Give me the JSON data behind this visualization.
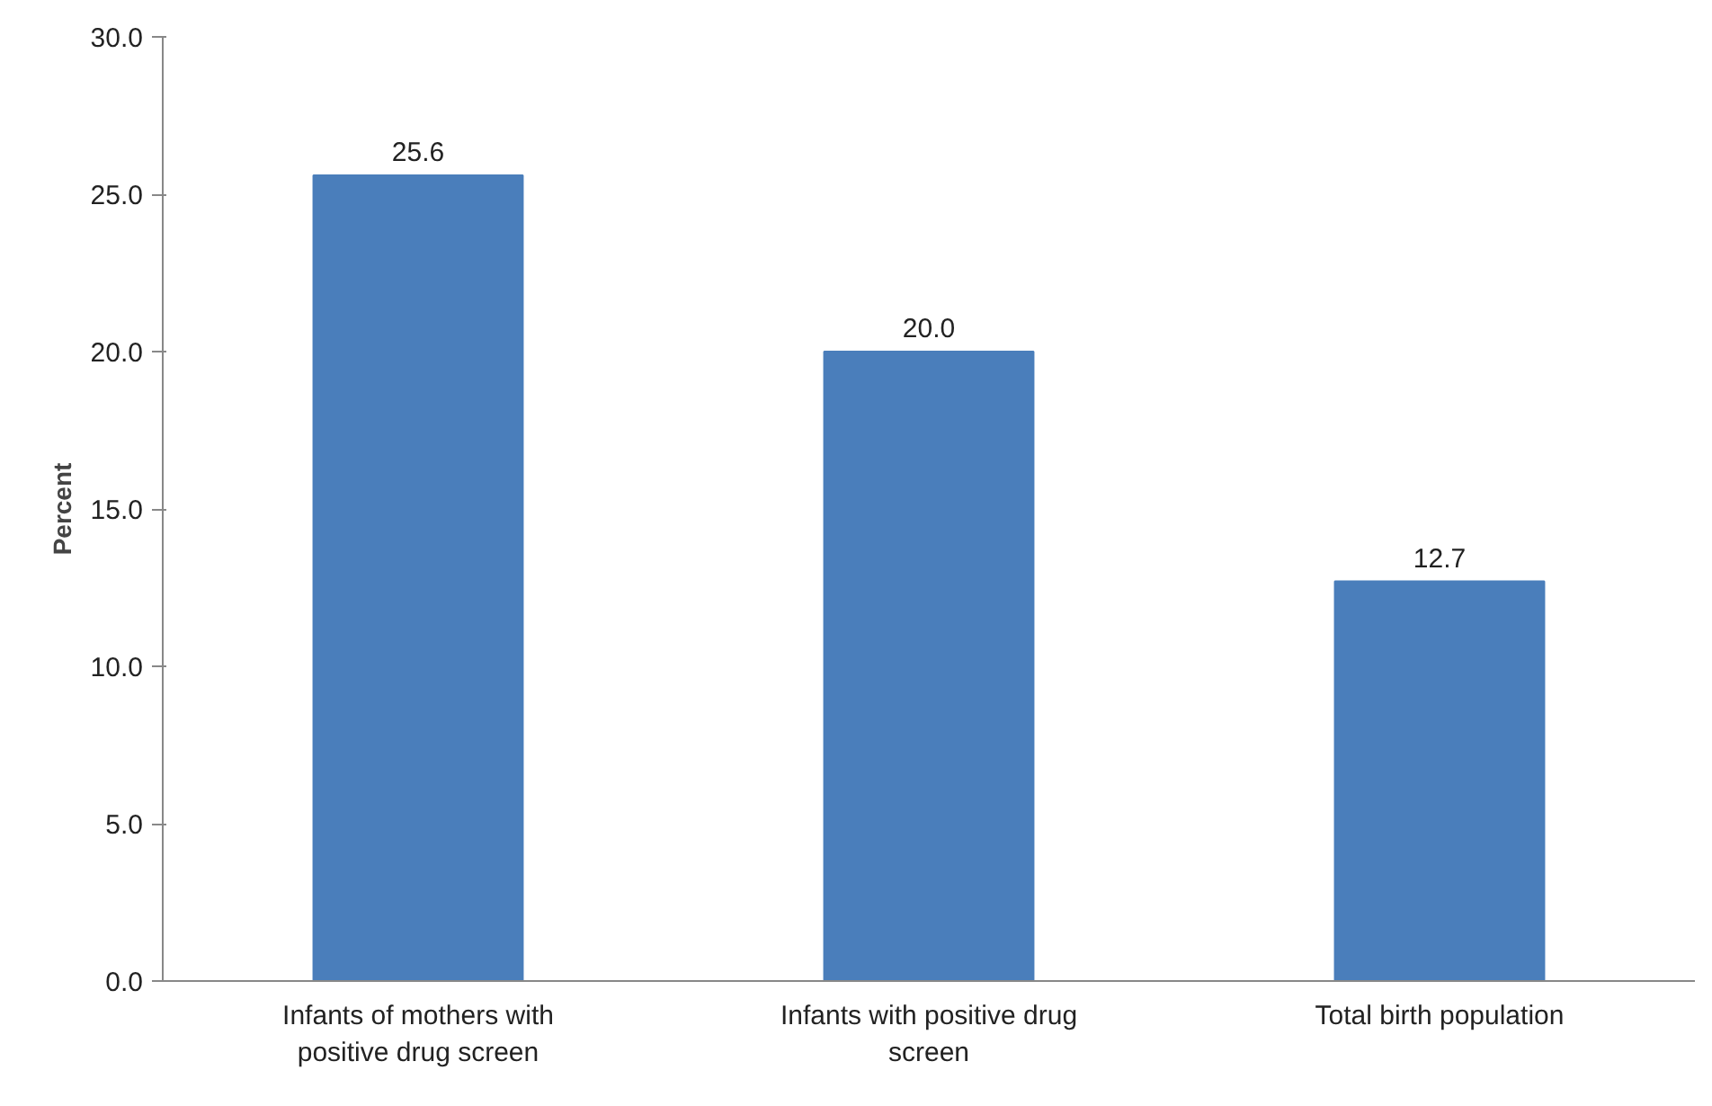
{
  "chart_data": {
    "type": "bar",
    "ylabel": "Percent",
    "categories": [
      "Infants of mothers with positive drug screen",
      "Infants with positive drug screen",
      "Total birth population"
    ],
    "values": [
      25.6,
      20.0,
      12.7
    ],
    "value_labels": [
      "25.6",
      "20.0",
      "12.7"
    ],
    "color": "#4a7ebb",
    "ylim": [
      0,
      30
    ],
    "yticks": [
      {
        "value": 0,
        "label": "0.0"
      },
      {
        "value": 5,
        "label": "5.0"
      },
      {
        "value": 10,
        "label": "10.0"
      },
      {
        "value": 15,
        "label": "15.0"
      },
      {
        "value": 20,
        "label": "20.0"
      },
      {
        "value": 25,
        "label": "25.0"
      },
      {
        "value": 30,
        "label": "30.0"
      }
    ],
    "grid": false
  }
}
